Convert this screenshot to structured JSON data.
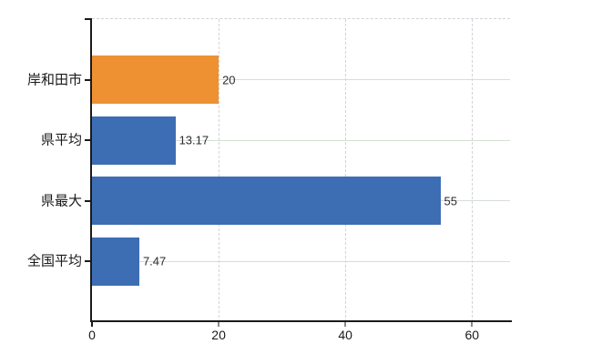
{
  "chart_data": {
    "type": "bar",
    "orientation": "horizontal",
    "title": "",
    "xlabel": "",
    "ylabel": "",
    "categories": [
      "岸和田市",
      "県平均",
      "県最大",
      "全国平均"
    ],
    "values": [
      20,
      13.17,
      55,
      7.47
    ],
    "value_labels": [
      "20",
      "13.17",
      "55",
      "7.47"
    ],
    "bar_colors": [
      "#ee9133",
      "#3d6eb4",
      "#3d6eb4",
      "#3d6eb4"
    ],
    "highlight_color": "#ee9133",
    "default_color": "#3d6eb4",
    "xlim": [
      0,
      66
    ],
    "x_tick_values": [
      0,
      20,
      40,
      60
    ],
    "x_tick_labels": [
      "0",
      "20",
      "40",
      "60"
    ],
    "grid": true,
    "legend_position": "none"
  },
  "colors": {
    "background": "#ffffff",
    "axis": "#1a1a1a",
    "grid_horizontal": "#d6ded6",
    "grid_vertical": "#d4d2da",
    "tick_minor": "#8a8a8a",
    "label_text": "#1a1a1a",
    "value_text": "#2b2b2b"
  }
}
